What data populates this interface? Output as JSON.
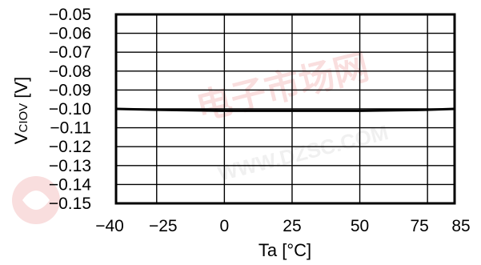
{
  "chart_data": {
    "type": "line",
    "xlabel": "Ta [°C]",
    "ylabel": {
      "main": "V",
      "sub": "CIOV",
      "unit": " [V]"
    },
    "x_ticks": [
      -40,
      -25,
      0,
      25,
      50,
      75,
      85
    ],
    "y_ticks": [
      -0.05,
      -0.06,
      -0.07,
      -0.08,
      -0.09,
      -0.1,
      -0.11,
      -0.12,
      -0.13,
      -0.14,
      -0.15
    ],
    "x_tick_labels": [
      "−40",
      "−25",
      "0",
      "25",
      "50",
      "75",
      "85"
    ],
    "y_tick_labels": [
      "−0.05",
      "−0.06",
      "−0.07",
      "−0.08",
      "−0.09",
      "−0.10",
      "−0.11",
      "−0.12",
      "−0.13",
      "−0.14",
      "−0.15"
    ],
    "xlim": [
      -40,
      85
    ],
    "ylim": [
      -0.15,
      -0.05
    ],
    "grid": true,
    "series": [
      {
        "x": [
          -40,
          -25,
          0,
          25,
          50,
          75,
          85
        ],
        "y": [
          -0.1,
          -0.1005,
          -0.101,
          -0.101,
          -0.101,
          -0.1005,
          -0.1
        ],
        "color": "#000000"
      }
    ]
  },
  "watermark": {
    "text": "WWW.DZSC.COM",
    "chars": "电子市场网",
    "color": "#cc0000"
  }
}
